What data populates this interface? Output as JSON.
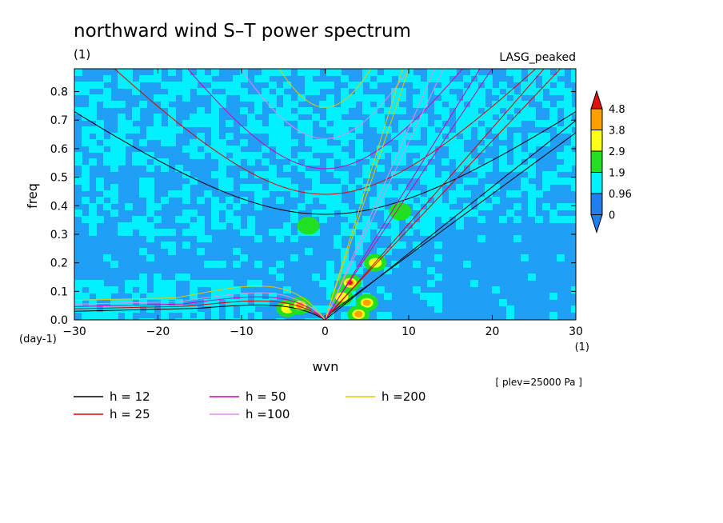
{
  "chart_data": {
    "type": "heatmap",
    "title": "northward wind S–T power spectrum",
    "title_units": "(1)",
    "subtitle_right": "LASG_peaked",
    "xlabel": "wvn",
    "ylabel": "freq",
    "x_units": "(1)",
    "y_units": "(day-1)",
    "annotation": "[ plev=25000 Pa ]",
    "xlim": [
      -30,
      30
    ],
    "ylim": [
      0,
      0.88
    ],
    "x_ticks": [
      "−30",
      "−20",
      "−10",
      "0",
      "10",
      "20",
      "30"
    ],
    "y_ticks": [
      "0.0",
      "0.1",
      "0.2",
      "0.3",
      "0.4",
      "0.5",
      "0.6",
      "0.7",
      "0.8"
    ],
    "colorbar": {
      "labels": [
        "4.8",
        "3.8",
        "2.9",
        "1.9",
        "0.96",
        "0"
      ],
      "colors": [
        "#1f7ff0",
        "#00f0ff",
        "#21e021",
        "#ffff1a",
        "#ff9f00",
        "#e01010"
      ]
    },
    "background_level_color": "#1f9ff5",
    "legend": [
      {
        "label": "h = 12",
        "color": "#000000"
      },
      {
        "label": "h = 25",
        "color": "#e00000"
      },
      {
        "label": "h = 50",
        "color": "#d400b0"
      },
      {
        "label": "h =100",
        "color": "#e090e0"
      },
      {
        "label": "h =200",
        "color": "#e8c800"
      }
    ],
    "dispersion_curves": [
      {
        "h": 12,
        "color": "#000000",
        "kelvin_slope": 0.0233,
        "n1_min": 0.37,
        "mrg_low": 0.055
      },
      {
        "h": 25,
        "color": "#e00000",
        "kelvin_slope": 0.0336,
        "n1_min": 0.44,
        "mrg_low": 0.07
      },
      {
        "h": 50,
        "color": "#d400b0",
        "kelvin_slope": 0.0475,
        "n1_min": 0.53,
        "mrg_low": 0.085
      },
      {
        "h": 100,
        "color": "#e090e0",
        "kelvin_slope": 0.0671,
        "n1_min": 0.635,
        "mrg_low": 0.1
      },
      {
        "h": 200,
        "color": "#e8c800",
        "kelvin_slope": 0.095,
        "n1_min": 0.745,
        "mrg_low": 0.125
      }
    ]
  }
}
